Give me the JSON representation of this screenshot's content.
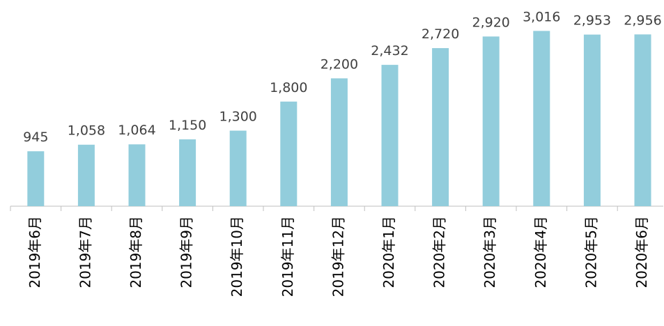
{
  "chart_data": {
    "type": "bar",
    "categories": [
      "2019年6月",
      "2019年7月",
      "2019年8月",
      "2019年9月",
      "2019年10月",
      "2019年11月",
      "2019年12月",
      "2020年1月",
      "2020年2月",
      "2020年3月",
      "2020年4月",
      "2020年5月",
      "2020年6月"
    ],
    "values": [
      945,
      1058,
      1064,
      1150,
      1300,
      1800,
      2200,
      2432,
      2720,
      2920,
      3016,
      2953,
      2956
    ],
    "value_labels": [
      "945",
      "1,058",
      "1,064",
      "1,150",
      "1,300",
      "1,800",
      "2,200",
      "2,432",
      "2,720",
      "2,920",
      "3,016",
      "2,953",
      "2,956"
    ],
    "color": "#92cddc",
    "ylim": [
      0,
      3500
    ]
  }
}
